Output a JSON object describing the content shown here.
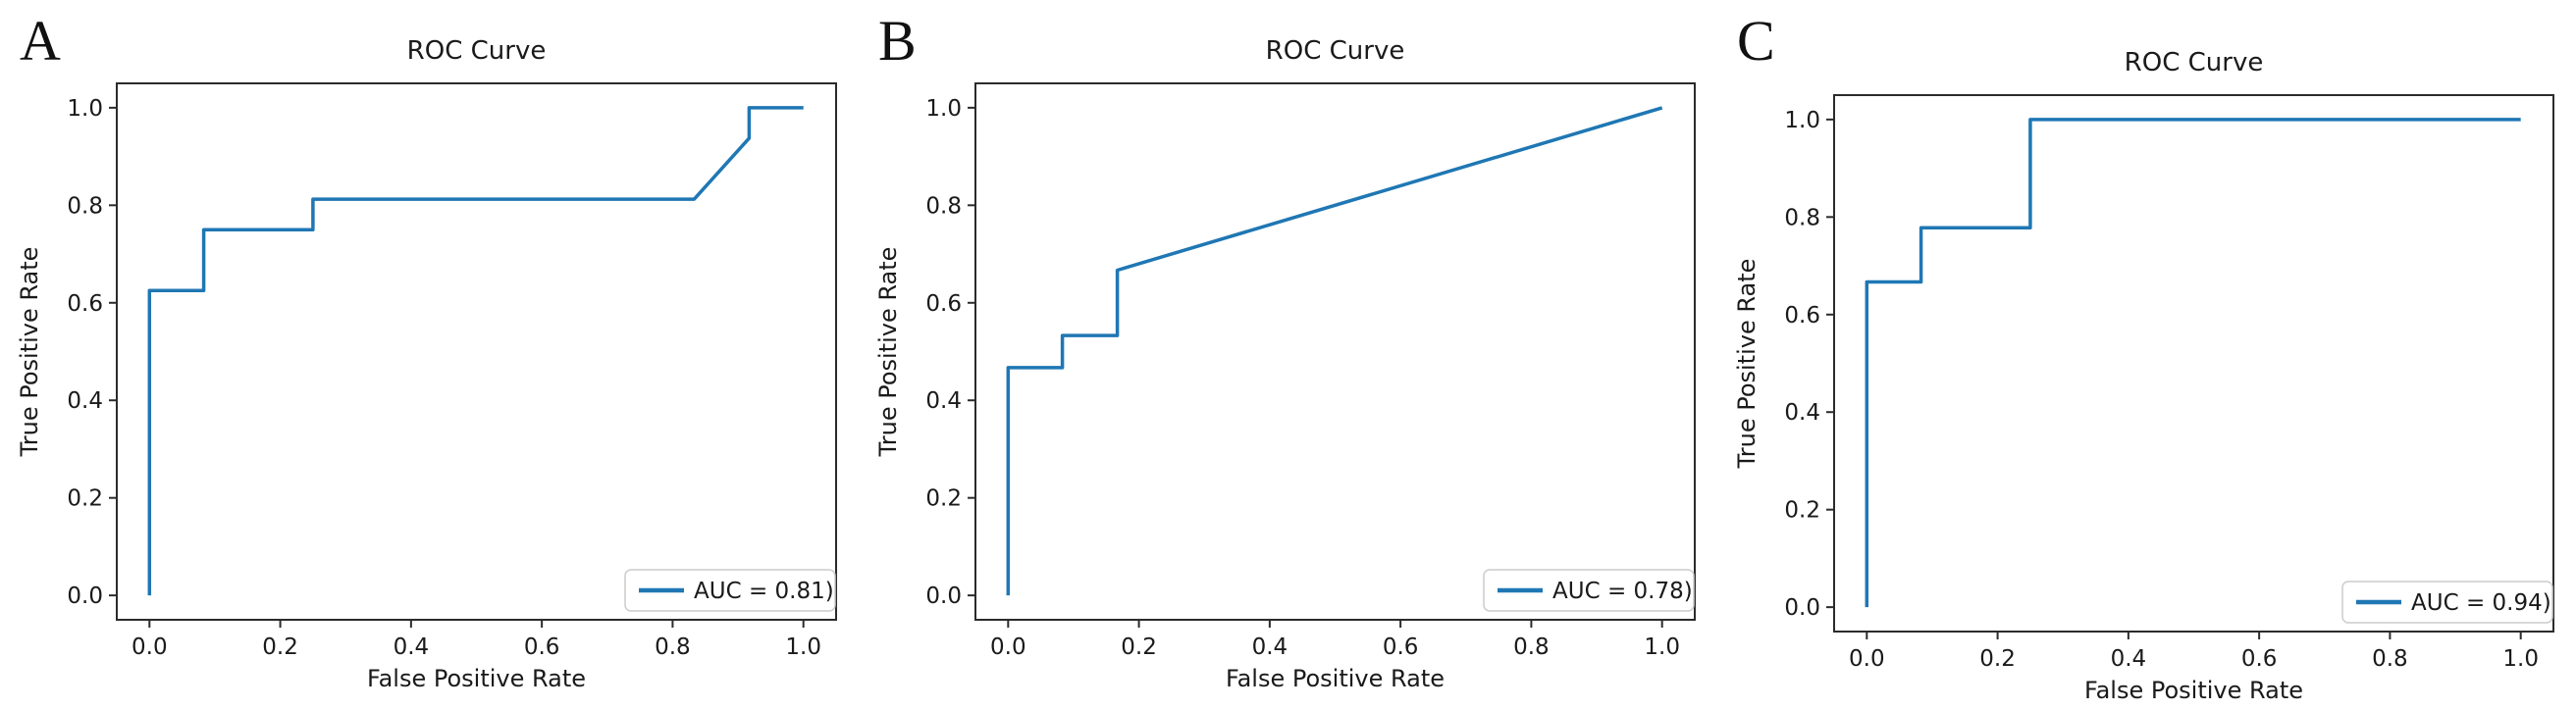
{
  "figure": {
    "background": "#ffffff",
    "text_color": "#1a1a1a",
    "spine_color": "#2b2b2b",
    "accent_color": "#1f77b4"
  },
  "chart_data": [
    {
      "type": "line",
      "panel": "A",
      "title": "ROC Curve",
      "xlabel": "False Positive Rate",
      "ylabel": "True Positive Rate",
      "xlim": [
        -0.05,
        1.05
      ],
      "ylim": [
        -0.05,
        1.05
      ],
      "xticks": [
        0.0,
        0.2,
        0.4,
        0.6,
        0.8,
        1.0
      ],
      "yticks": [
        0.0,
        0.2,
        0.4,
        0.6,
        0.8,
        1.0
      ],
      "grid": false,
      "legend_position": "lower right",
      "legend_label": "AUC = 0.81)",
      "auc": 0.81,
      "layout_offset_y": 0,
      "series": [
        {
          "name": "ROC",
          "color": "#1f77b4",
          "x": [
            0.0,
            0.0,
            0.083,
            0.083,
            0.25,
            0.25,
            0.833,
            0.917,
            0.917,
            1.0
          ],
          "y": [
            0.0,
            0.625,
            0.625,
            0.75,
            0.75,
            0.8125,
            0.8125,
            0.9375,
            1.0,
            1.0
          ]
        }
      ]
    },
    {
      "type": "line",
      "panel": "B",
      "title": "ROC Curve",
      "xlabel": "False Positive Rate",
      "ylabel": "True Positive Rate",
      "xlim": [
        -0.05,
        1.05
      ],
      "ylim": [
        -0.05,
        1.05
      ],
      "xticks": [
        0.0,
        0.2,
        0.4,
        0.6,
        0.8,
        1.0
      ],
      "yticks": [
        0.0,
        0.2,
        0.4,
        0.6,
        0.8,
        1.0
      ],
      "grid": false,
      "legend_position": "lower right",
      "legend_label": "AUC = 0.78)",
      "auc": 0.78,
      "layout_offset_y": 0,
      "series": [
        {
          "name": "ROC",
          "color": "#1f77b4",
          "x": [
            0.0,
            0.0,
            0.083,
            0.083,
            0.167,
            0.167,
            1.0
          ],
          "y": [
            0.0,
            0.467,
            0.467,
            0.533,
            0.533,
            0.667,
            1.0
          ]
        }
      ]
    },
    {
      "type": "line",
      "panel": "C",
      "title": "ROC Curve",
      "xlabel": "False Positive Rate",
      "ylabel": "True Positive Rate",
      "xlim": [
        -0.05,
        1.05
      ],
      "ylim": [
        -0.05,
        1.05
      ],
      "xticks": [
        0.0,
        0.2,
        0.4,
        0.6,
        0.8,
        1.0
      ],
      "yticks": [
        0.0,
        0.2,
        0.4,
        0.6,
        0.8,
        1.0
      ],
      "grid": false,
      "legend_position": "lower right",
      "legend_label": "AUC = 0.94)",
      "auc": 0.94,
      "layout_offset_y": 12,
      "series": [
        {
          "name": "ROC",
          "color": "#1f77b4",
          "x": [
            0.0,
            0.0,
            0.083,
            0.083,
            0.25,
            0.25,
            1.0
          ],
          "y": [
            0.0,
            0.667,
            0.667,
            0.778,
            0.778,
            1.0,
            1.0
          ]
        }
      ]
    }
  ]
}
